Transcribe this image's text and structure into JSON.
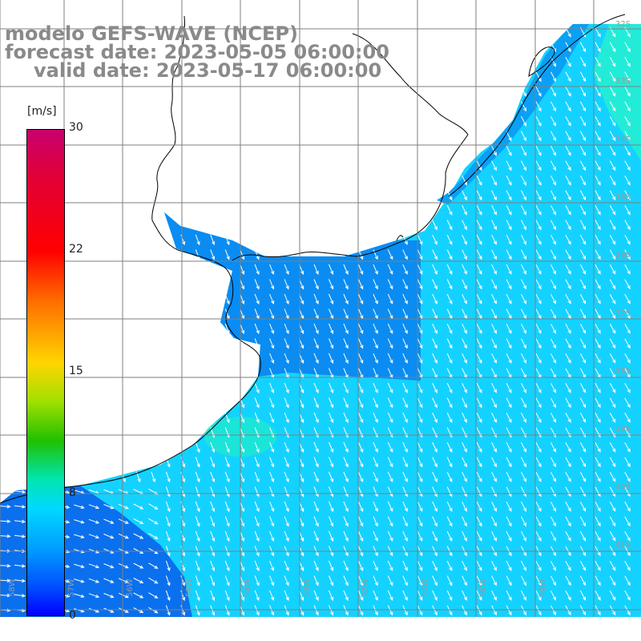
{
  "title": {
    "line1": "modelo GEFS-WAVE (NCEP)",
    "line2": "forecast date: 2023-05-05 06:00:00",
    "line3": "valid date: 2023-05-17 06:00:00"
  },
  "colorbar": {
    "unit": "[m/s]",
    "ticks": [
      "30",
      "22",
      "15",
      "8",
      "0"
    ]
  },
  "grid": {
    "lat_labels": [
      "32S",
      "33S",
      "34S",
      "35S",
      "36S",
      "37S",
      "38S",
      "39S",
      "40S",
      "41S"
    ],
    "lon_labels": [
      "58W",
      "57W",
      "56W",
      "55W",
      "54W",
      "53W",
      "52W",
      "51W",
      "50W",
      "49W"
    ]
  },
  "chart_data": {
    "type": "heatmap",
    "variable": "wind speed with direction vectors",
    "lat_range": [
      "32S",
      "41S"
    ],
    "lon_range": [
      "58W",
      "49W"
    ],
    "color_range": [
      0,
      30
    ],
    "observed_speed_range_ms": [
      5,
      10
    ],
    "colors": {
      "land": "#ffffff",
      "coastline": "#000000",
      "gridline": "#7f7f7f",
      "low_wind": "#0a7bf0",
      "mid_wind": "#14d2ff",
      "high_wind": "#20f2d6",
      "vector": "#ffffff"
    }
  }
}
